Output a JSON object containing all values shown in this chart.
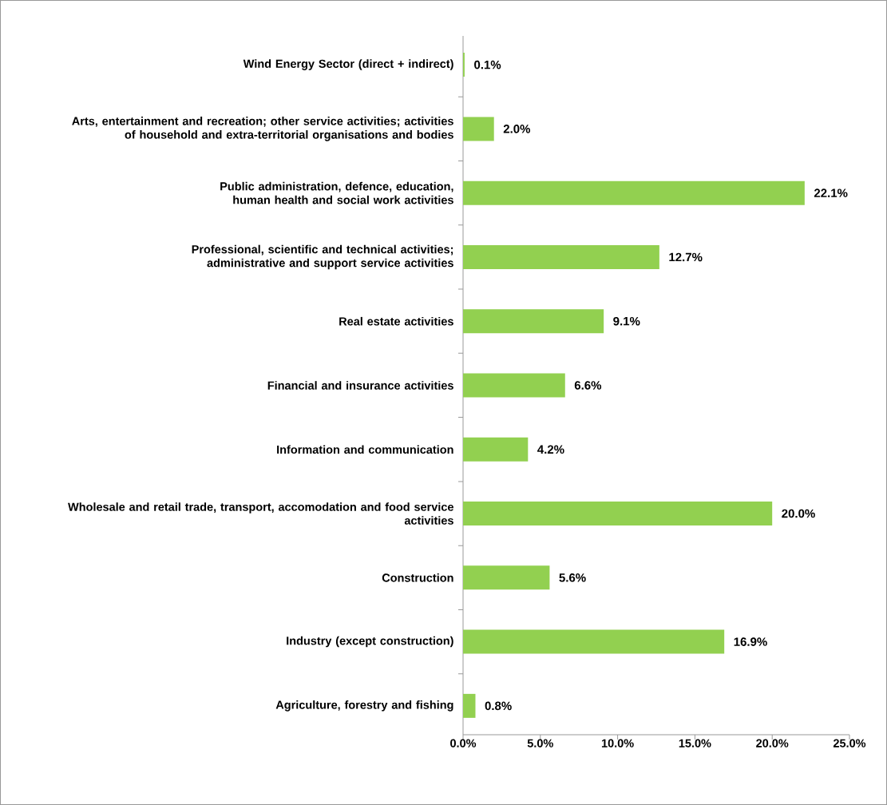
{
  "chart_data": {
    "type": "bar",
    "orientation": "horizontal",
    "color": "#92d050",
    "categories": [
      "Wind Energy Sector (direct + indirect)",
      "Arts, entertainment and recreation; other service activities; activities of household and extra-territorial organisations and bodies",
      "Public administration, defence, education, human health and social work activities",
      "Professional, scientific and technical activities; administrative and support service activities",
      "Real estate activities",
      "Financial and insurance activities",
      "Information and communication",
      "Wholesale and retail trade, transport, accomodation and food service activities",
      "Construction",
      "Industry (except construction)",
      "Agriculture, forestry and fishing"
    ],
    "values": [
      0.1,
      2.0,
      22.1,
      12.7,
      9.1,
      6.6,
      4.2,
      20.0,
      5.6,
      16.9,
      0.8
    ],
    "value_labels": [
      "0.1%",
      "2.0%",
      "22.1%",
      "12.7%",
      "9.1%",
      "6.6%",
      "4.2%",
      "20.0%",
      "5.6%",
      "16.9%",
      "0.8%"
    ],
    "xlim": [
      0,
      25
    ],
    "xticks": [
      {
        "value": 0,
        "label": "0.0%"
      },
      {
        "value": 5,
        "label": "5.0%"
      },
      {
        "value": 10,
        "label": "10.0%"
      },
      {
        "value": 15,
        "label": "15.0%"
      },
      {
        "value": 20,
        "label": "20.0%"
      },
      {
        "value": 25,
        "label": "25.0%"
      }
    ]
  }
}
